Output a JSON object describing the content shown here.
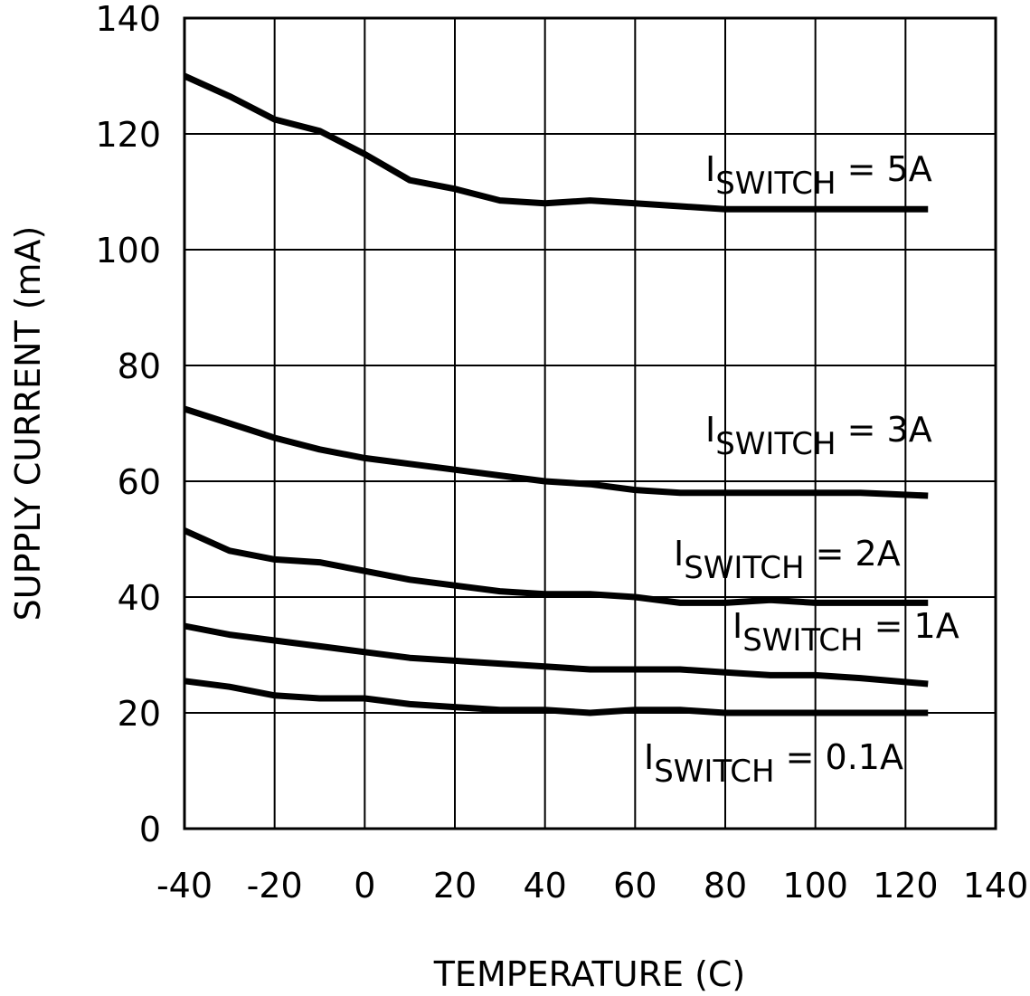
{
  "chart_data": {
    "type": "line",
    "x_label": "TEMPERATURE (C)",
    "y_label": "SUPPLY CURRENT (mA)",
    "x": [
      -40,
      -30,
      -20,
      -10,
      0,
      10,
      20,
      30,
      40,
      50,
      60,
      70,
      80,
      90,
      100,
      110,
      125
    ],
    "series": [
      {
        "name": "I",
        "name_sub": "SWITCH",
        "name_suffix": " = 5A",
        "color": "#000000",
        "values": [
          130,
          126.5,
          122.5,
          120.5,
          116.5,
          112,
          110.5,
          108.5,
          108,
          108.5,
          108,
          107.5,
          107,
          107,
          107,
          107,
          107
        ]
      },
      {
        "name": "I",
        "name_sub": "SWITCH",
        "name_suffix": " = 3A",
        "color": "#000000",
        "values": [
          72.5,
          70,
          67.5,
          65.5,
          64,
          63,
          62,
          61,
          60,
          59.5,
          58.5,
          58,
          58,
          58,
          58,
          58,
          57.5
        ]
      },
      {
        "name": "I",
        "name_sub": "SWITCH",
        "name_suffix": " = 2A",
        "color": "#000000",
        "values": [
          51.5,
          48,
          46.5,
          46,
          44.5,
          43,
          42,
          41,
          40.5,
          40.5,
          40,
          39,
          39,
          39.5,
          39,
          39,
          39
        ]
      },
      {
        "name": "I",
        "name_sub": "SWITCH",
        "name_suffix": " = 1A",
        "color": "#000000",
        "values": [
          35,
          33.5,
          32.5,
          31.5,
          30.5,
          29.5,
          29,
          28.5,
          28,
          27.5,
          27.5,
          27.5,
          27,
          26.5,
          26.5,
          26,
          25
        ]
      },
      {
        "name": "I",
        "name_sub": "SWITCH",
        "name_suffix": " = 0.1A",
        "color": "#000000",
        "values": [
          25.5,
          24.5,
          23,
          22.5,
          22.5,
          21.5,
          21,
          20.5,
          20.5,
          20,
          20.5,
          20.5,
          20,
          20,
          20,
          20,
          20
        ]
      }
    ],
    "xlim": [
      -40,
      140
    ],
    "xticks": [
      -40,
      -20,
      0,
      20,
      40,
      60,
      80,
      100,
      120,
      140
    ],
    "ylim": [
      0,
      140
    ],
    "yticks": [
      0,
      20,
      40,
      60,
      80,
      100,
      120,
      140
    ],
    "grid": true
  }
}
